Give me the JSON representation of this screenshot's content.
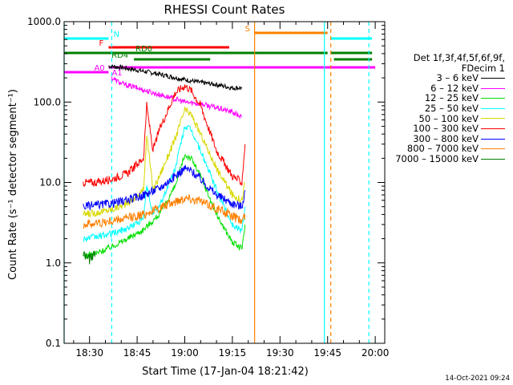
{
  "chart_data": {
    "type": "line",
    "title": "RHESSI Count Rates",
    "xlabel": "Start Time (17-Jan-04 18:21:42)",
    "ylabel": "Count Rate (s⁻¹ detector segment⁻¹)",
    "y_scale": "log",
    "ylim": [
      0.1,
      1000
    ],
    "xlim_minutes": [
      "18:22",
      "20:03"
    ],
    "x_ticks": [
      "18:30",
      "18:45",
      "19:00",
      "19:15",
      "19:30",
      "19:45",
      "20:00"
    ],
    "y_ticks": [
      "0.1",
      "1.0",
      "10.0",
      "100.0",
      "1000.0"
    ],
    "legend": {
      "placement": "right",
      "header": [
        "Det 1f,3f,4f,5f,6f,9f,",
        "FDecim 1"
      ],
      "entries": [
        {
          "label": "3 – 6 keV",
          "color": "#000000"
        },
        {
          "label": "6 – 12 keV",
          "color": "#ff00ff"
        },
        {
          "label": "12 – 25 keV",
          "color": "#00e000"
        },
        {
          "label": "25 – 50 keV",
          "color": "#00ffff"
        },
        {
          "label": "50 – 100 keV",
          "color": "#d8d800"
        },
        {
          "label": "100 – 300 keV",
          "color": "#ff0000"
        },
        {
          "label": "300 – 800 keV",
          "color": "#0000ff"
        },
        {
          "label": "800 – 7000 keV",
          "color": "#ff8000"
        },
        {
          "label": "7000 – 15000 keV",
          "color": "#008000"
        }
      ]
    },
    "series": [
      {
        "name": "3 – 6 keV",
        "color": "#000000",
        "x": [
          "18:36",
          "18:40",
          "18:45",
          "18:50",
          "18:55",
          "19:00",
          "19:05",
          "19:10",
          "19:15",
          "19:18"
        ],
        "y": [
          280,
          270,
          250,
          230,
          210,
          190,
          175,
          165,
          150,
          150
        ]
      },
      {
        "name": "6 – 12 keV",
        "color": "#ff00ff",
        "x": [
          "18:37",
          "18:40",
          "18:45",
          "18:50",
          "18:55",
          "19:00",
          "19:05",
          "19:10",
          "19:15",
          "19:18"
        ],
        "y": [
          200,
          170,
          150,
          130,
          115,
          100,
          95,
          85,
          75,
          65
        ]
      },
      {
        "name": "12 – 25 keV",
        "color": "#00e000",
        "x": [
          "18:28",
          "18:32",
          "18:37",
          "18:42",
          "18:47",
          "18:52",
          "18:57",
          "19:00",
          "19:02",
          "19:05",
          "19:10",
          "19:15",
          "19:18",
          "19:19"
        ],
        "y": [
          1.2,
          1.3,
          1.6,
          2.0,
          2.6,
          4,
          9,
          22,
          20,
          12,
          4,
          1.8,
          1.5,
          3
        ]
      },
      {
        "name": "25 – 50 keV",
        "color": "#00ffff",
        "x": [
          "18:28",
          "18:32",
          "18:37",
          "18:42",
          "18:47",
          "18:48",
          "18:50",
          "18:52",
          "18:57",
          "19:00",
          "19:02",
          "19:05",
          "19:10",
          "19:15",
          "19:18",
          "19:19"
        ],
        "y": [
          2,
          2.1,
          2.3,
          2.7,
          3.5,
          9,
          4,
          5,
          15,
          50,
          45,
          25,
          8,
          3,
          2.5,
          5
        ]
      },
      {
        "name": "50 – 100 keV",
        "color": "#d8d800",
        "x": [
          "18:28",
          "18:32",
          "18:37",
          "18:42",
          "18:47",
          "18:48",
          "18:50",
          "18:52",
          "18:57",
          "19:00",
          "19:02",
          "19:05",
          "19:10",
          "19:15",
          "19:18",
          "19:19"
        ],
        "y": [
          4,
          4.2,
          4.6,
          5.5,
          8,
          40,
          8,
          12,
          35,
          80,
          70,
          40,
          15,
          7,
          6,
          10
        ]
      },
      {
        "name": "100 – 300 keV",
        "color": "#ff0000",
        "x": [
          "18:28",
          "18:32",
          "18:37",
          "18:42",
          "18:47",
          "18:48",
          "18:50",
          "18:52",
          "18:57",
          "19:00",
          "19:02",
          "19:05",
          "19:10",
          "19:15",
          "19:18",
          "19:19"
        ],
        "y": [
          10,
          10,
          11,
          13,
          20,
          90,
          25,
          45,
          130,
          160,
          140,
          90,
          25,
          12,
          10,
          30
        ]
      },
      {
        "name": "300 – 800 keV",
        "color": "#0000ff",
        "x": [
          "18:28",
          "18:32",
          "18:37",
          "18:42",
          "18:47",
          "18:52",
          "18:57",
          "19:00",
          "19:02",
          "19:05",
          "19:10",
          "19:15",
          "19:18",
          "19:19"
        ],
        "y": [
          5,
          5.2,
          5.5,
          6,
          7,
          8.5,
          12,
          15,
          14,
          11,
          7,
          5.5,
          5,
          8
        ]
      },
      {
        "name": "800 – 7000 keV",
        "color": "#ff8000",
        "x": [
          "18:28",
          "18:32",
          "18:37",
          "18:42",
          "18:47",
          "18:52",
          "18:57",
          "19:00",
          "19:02",
          "19:05",
          "19:10",
          "19:15",
          "19:18",
          "19:19"
        ],
        "y": [
          3,
          3.1,
          3.3,
          3.6,
          4,
          4.8,
          5.8,
          6.5,
          6.3,
          5.8,
          4.8,
          3.8,
          3.3,
          4
        ]
      },
      {
        "name": "7000 – 15000 keV",
        "color": "#008000",
        "x": [
          "18:28",
          "18:30",
          "18:32"
        ],
        "y": [
          1.3,
          1.1,
          1.4
        ]
      }
    ],
    "state_bars": [
      {
        "label": "N",
        "color": "#00ffff",
        "segments": [
          [
            "18:22",
            "18:36"
          ],
          [
            "19:46",
            "19:59"
          ]
        ]
      },
      {
        "label": "S",
        "color": "#ff8000",
        "segments": [
          [
            "19:22",
            "19:45"
          ]
        ]
      },
      {
        "label": "F",
        "color": "#ff0000",
        "segments": [
          [
            "18:36",
            "19:14"
          ]
        ]
      },
      {
        "label": "RD0",
        "color": "#008000",
        "segments": [
          [
            "18:22",
            "19:11"
          ],
          [
            "19:11",
            "19:45"
          ],
          [
            "19:46",
            "19:59"
          ]
        ]
      },
      {
        "label": "RD4",
        "color": "#008000",
        "segments": [
          [
            "18:44",
            "19:08"
          ],
          [
            "19:47",
            "19:59"
          ]
        ]
      },
      {
        "label": "A0",
        "color": "#ff00ff",
        "segments": [
          [
            "18:22",
            "18:36"
          ]
        ]
      },
      {
        "label": "A1",
        "color": "#ff00ff",
        "segments": [
          [
            "18:36",
            "20:00"
          ]
        ]
      }
    ],
    "vertical_markers": [
      {
        "color": "#00ffff",
        "x": "18:22",
        "style": "solid"
      },
      {
        "color": "#00ffff",
        "x": "18:37",
        "style": "dashed"
      },
      {
        "color": "#ff8000",
        "x": "19:22",
        "style": "solid"
      },
      {
        "color": "#00ffff",
        "x": "19:44",
        "style": "solid"
      },
      {
        "color": "#ff8000",
        "x": "19:46",
        "style": "dashed"
      },
      {
        "color": "#00ffff",
        "x": "19:58",
        "style": "dashed"
      }
    ]
  },
  "footer": {
    "timestamp": "14-Oct-2021 09:24"
  }
}
